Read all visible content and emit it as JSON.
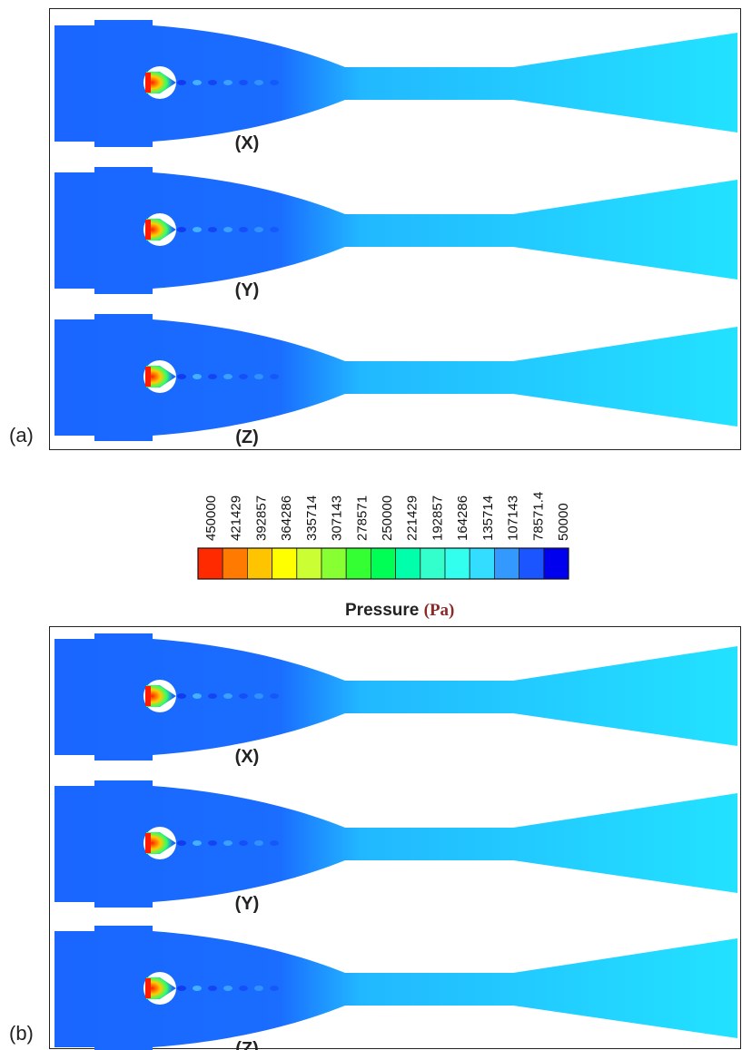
{
  "panels": [
    {
      "tag": "(a)",
      "cases": [
        "(X)",
        "(Y)",
        "(Z)"
      ]
    },
    {
      "tag": "(b)",
      "cases": [
        "(X)",
        "(Y)",
        "(Z)"
      ]
    }
  ],
  "colorbar": {
    "title": "Pressure",
    "unit": "(Pa)",
    "ticks": [
      "450000",
      "421429",
      "392857",
      "364286",
      "335714",
      "307143",
      "278571",
      "250000",
      "221429",
      "192857",
      "164286",
      "135714",
      "107143",
      "78571.4",
      "50000"
    ],
    "colors": [
      "#ff2a00",
      "#ff7a00",
      "#ffc400",
      "#ffff00",
      "#ccff33",
      "#88ff33",
      "#33ff33",
      "#00ff55",
      "#00ffaa",
      "#33ffcc",
      "#33ffee",
      "#33ddff",
      "#3399ff",
      "#1a55ff",
      "#0000ee"
    ]
  },
  "colors": {
    "inlet": "#1a66ff",
    "outlet": "#22ddff",
    "hot": "#ff2200"
  }
}
